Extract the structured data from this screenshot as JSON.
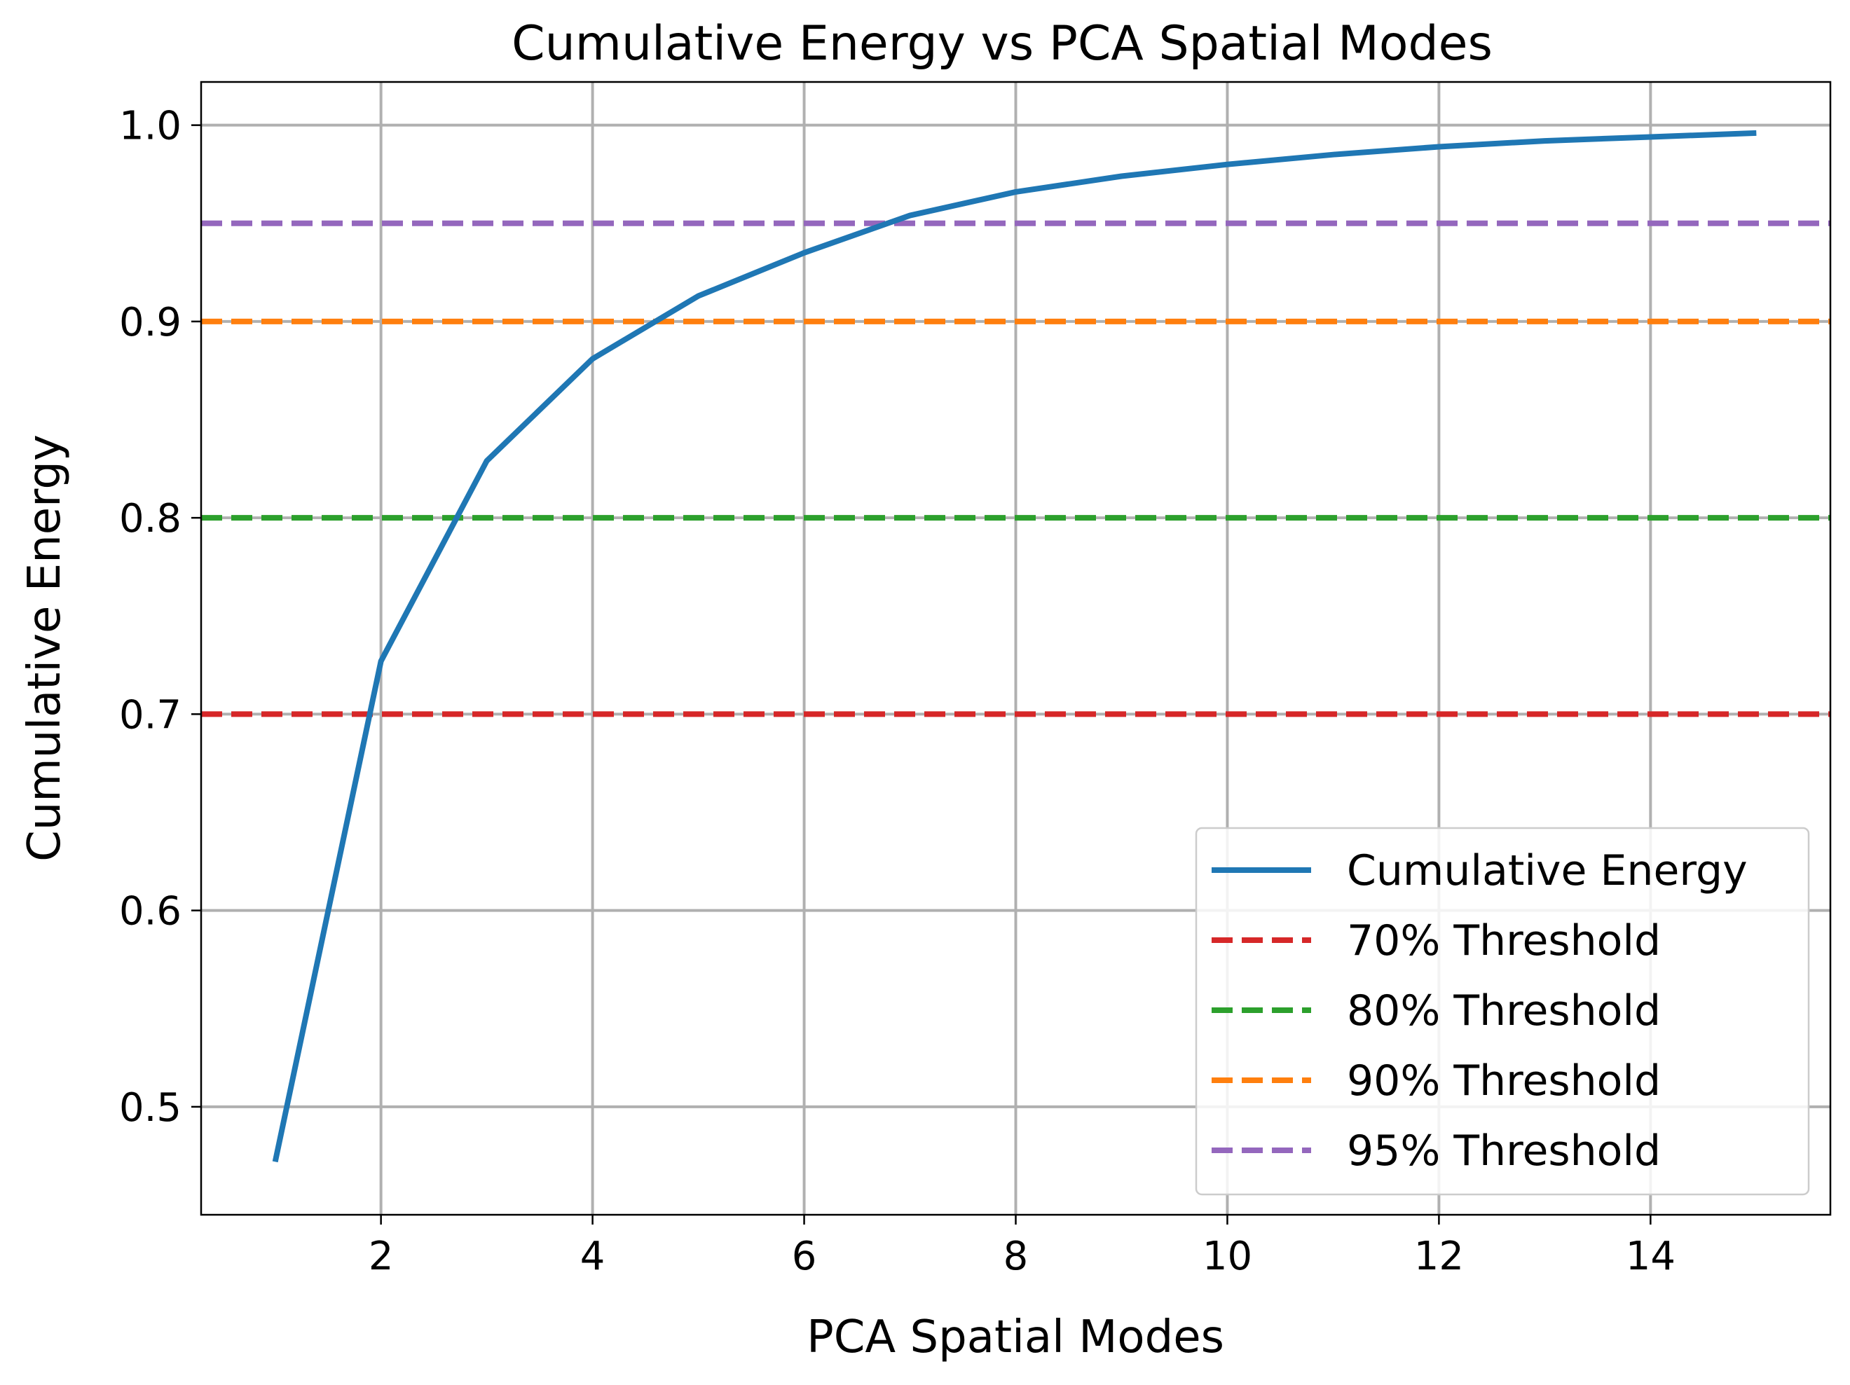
{
  "chart_data": {
    "type": "line",
    "title": "Cumulative Energy vs PCA Spatial Modes",
    "xlabel": "PCA Spatial Modes",
    "ylabel": "Cumulative Energy",
    "xlim": [
      0.3,
      15.7
    ],
    "ylim": [
      0.445,
      1.022
    ],
    "x_ticks": [
      2,
      4,
      6,
      8,
      10,
      12,
      14
    ],
    "y_ticks": [
      0.5,
      0.6,
      0.7,
      0.8,
      0.9,
      1.0
    ],
    "x_tick_labels": [
      "2",
      "4",
      "6",
      "8",
      "10",
      "12",
      "14"
    ],
    "y_tick_labels": [
      "0.5",
      "0.6",
      "0.7",
      "0.8",
      "0.9",
      "1.0"
    ],
    "grid": true,
    "legend_position": "lower-right",
    "series": [
      {
        "name": "Cumulative Energy",
        "color": "#1f77b4",
        "style": "solid",
        "x": [
          1,
          2,
          3,
          4,
          5,
          6,
          7,
          8,
          9,
          10,
          11,
          12,
          13,
          14,
          15
        ],
        "y": [
          0.472,
          0.727,
          0.829,
          0.881,
          0.913,
          0.935,
          0.954,
          0.966,
          0.974,
          0.98,
          0.985,
          0.989,
          0.992,
          0.994,
          0.996
        ]
      }
    ],
    "thresholds": [
      {
        "name": "70% Threshold",
        "value": 0.7,
        "color": "#d62728",
        "style": "dashed"
      },
      {
        "name": "80% Threshold",
        "value": 0.8,
        "color": "#2ca02c",
        "style": "dashed"
      },
      {
        "name": "90% Threshold",
        "value": 0.9,
        "color": "#ff7f0e",
        "style": "dashed"
      },
      {
        "name": "95% Threshold",
        "value": 0.95,
        "color": "#9467bd",
        "style": "dashed"
      }
    ]
  }
}
